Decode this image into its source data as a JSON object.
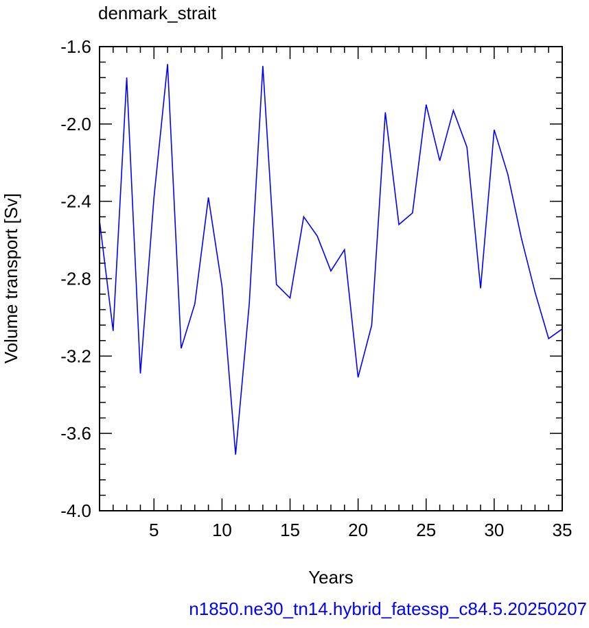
{
  "chart_data": {
    "type": "line",
    "title": "denmark_strait",
    "xlabel": "Years",
    "ylabel": "Volume transport [Sv]",
    "footer": "n1850.ne30_tn14.hybrid_fatessp_c84.5.20250207",
    "xlim": [
      1,
      35
    ],
    "ylim": [
      -4.0,
      -1.6
    ],
    "xticks": [
      5,
      10,
      15,
      20,
      25,
      30,
      35
    ],
    "xtick_labels": [
      "5",
      "10",
      "15",
      "20",
      "25",
      "30",
      "35"
    ],
    "yticks": [
      -4.0,
      -3.6,
      -3.2,
      -2.8,
      -2.4,
      -2.0,
      -1.6
    ],
    "ytick_labels": [
      "-4.0",
      "-3.6",
      "-3.2",
      "-2.8",
      "-2.4",
      "-2.0",
      "-1.6"
    ],
    "grid": false,
    "line_color": "#0000ff",
    "series": [
      {
        "x": [
          1,
          2,
          3,
          4,
          5,
          6,
          7,
          8,
          9,
          10,
          11,
          12,
          13,
          14,
          15,
          16,
          17,
          18,
          19,
          20,
          21,
          22,
          23,
          24,
          25,
          26,
          27,
          28,
          29,
          30,
          31,
          32,
          33,
          34,
          35
        ],
        "values": [
          -2.5,
          -3.07,
          -1.76,
          -3.29,
          -2.38,
          -1.69,
          -3.16,
          -2.93,
          -2.38,
          -2.84,
          -3.71,
          -2.93,
          -1.7,
          -2.83,
          -2.9,
          -2.48,
          -2.58,
          -2.76,
          -2.65,
          -3.31,
          -3.04,
          -1.94,
          -2.52,
          -2.46,
          -1.9,
          -2.19,
          -1.93,
          -2.12,
          -2.85,
          -2.03,
          -2.26,
          -2.59,
          -2.87,
          -3.11,
          -3.06
        ]
      }
    ]
  }
}
